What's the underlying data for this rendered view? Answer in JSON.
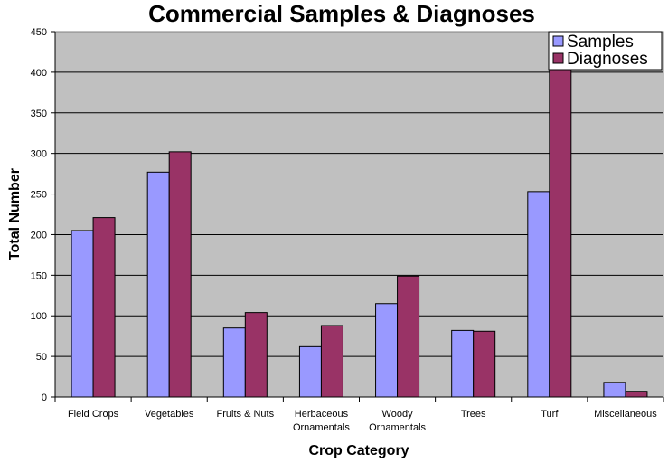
{
  "chart_data": {
    "type": "bar",
    "title": "Commercial Samples & Diagnoses",
    "xlabel": "Crop Category",
    "ylabel": "Total Number",
    "ylim": [
      0,
      450
    ],
    "yticks": [
      0,
      50,
      100,
      150,
      200,
      250,
      300,
      350,
      400,
      450
    ],
    "categories": [
      [
        "Field Crops"
      ],
      [
        "Vegetables"
      ],
      [
        "Fruits & Nuts"
      ],
      [
        "Herbaceous",
        "Ornamentals"
      ],
      [
        "Woody",
        "Ornamentals"
      ],
      [
        "Trees"
      ],
      [
        "Turf"
      ],
      [
        "Miscellaneous"
      ]
    ],
    "series": [
      {
        "name": "Samples",
        "color": "#9999ff",
        "values": [
          205,
          277,
          85,
          62,
          115,
          82,
          253,
          18
        ]
      },
      {
        "name": "Diagnoses",
        "color": "#993366",
        "values": [
          221,
          302,
          104,
          88,
          149,
          81,
          405,
          7
        ]
      }
    ],
    "plot_background": "#c0c0c0",
    "grid": true,
    "legend_position": "top-right"
  }
}
